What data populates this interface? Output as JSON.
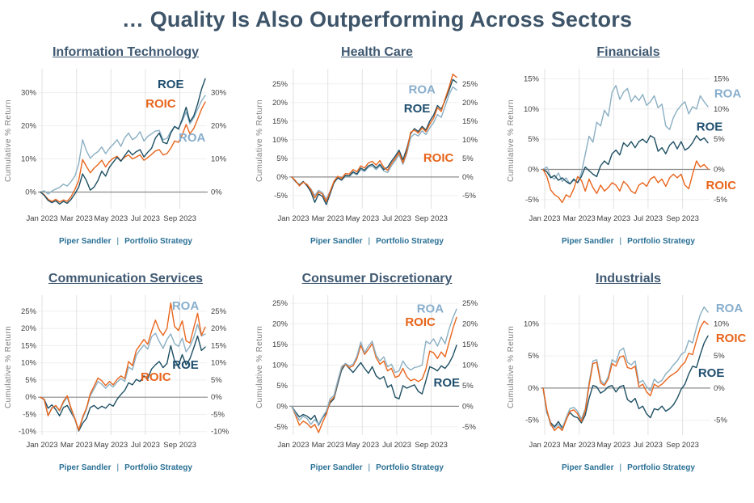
{
  "page_title": "… Quality Is Also Outperforming Across Sectors",
  "footer": {
    "brand": "Piper Sandler",
    "separator": "|",
    "team": "Portfolio Strategy"
  },
  "colors": {
    "roe": "#1d4f63",
    "roe_label": "#1f4e6e",
    "roic": "#e8651c",
    "roic_label": "#e8651c",
    "roa": "#8aafc3",
    "roa_label": "#88aecd",
    "title": "#3e5871",
    "grid_h": "#efefef",
    "grid_v": "#e2e2e2",
    "zero_line": "#8c8c8c",
    "tick_text": "#404040",
    "axis_label": "#7f7f7f",
    "footer_text": "#2a7095"
  },
  "axis": {
    "ylabel": "Cumulative % Return",
    "xticks": [
      "Jan 2023",
      "Mar 2023",
      "May 2023",
      "Jul 2023",
      "Sep 2023"
    ]
  },
  "chart_data": [
    {
      "type": "line",
      "title": "Information Technology",
      "ylim": [
        -5,
        36
      ],
      "yticks": [
        30,
        20,
        10,
        0
      ],
      "series": [
        {
          "name": "ROA",
          "color": "roa",
          "label": {
            "x": 0.92,
            "y": 16.5
          },
          "values": [
            0,
            0.4,
            -0.6,
            0.3,
            0.9,
            1.4,
            2.4,
            1.8,
            3.2,
            4.8,
            8.5,
            15.8,
            12.5,
            10.2,
            11.4,
            12.2,
            13.6,
            11.6,
            13.2,
            14.4,
            15.8,
            13.8,
            16.4,
            17.8,
            15.8,
            16.6,
            18.2,
            15.4,
            16.8,
            17.6,
            18.4,
            18.6,
            15.8,
            16.2,
            18.2,
            19.8,
            19.2,
            21.4,
            24.2,
            20.6,
            22.4,
            25,
            27.5,
            29.2
          ]
        },
        {
          "name": "ROIC",
          "color": "roic",
          "label": {
            "x": 0.73,
            "y": 26.7
          },
          "values": [
            0,
            -0.8,
            -2.2,
            -2.8,
            -2.2,
            -3,
            -2.4,
            -2.8,
            -1.4,
            0.8,
            3.5,
            9.8,
            7.8,
            5.8,
            7.2,
            8.3,
            9.6,
            7.6,
            9.2,
            10.2,
            10.8,
            9.4,
            10.6,
            11.2,
            10,
            10.6,
            11.2,
            9.6,
            10.4,
            11.4,
            12.4,
            12.8,
            11.2,
            11.6,
            13.2,
            15.4,
            15,
            17.2,
            20.4,
            17.6,
            19.2,
            22,
            25,
            27.2
          ]
        },
        {
          "name": "ROE",
          "color": "roe",
          "label": {
            "x": 0.79,
            "y": 32.6
          },
          "values": [
            0,
            -1,
            -2.5,
            -3.2,
            -2.6,
            -3.6,
            -2.8,
            -3.4,
            -2.2,
            -0.5,
            1.5,
            5.5,
            3.5,
            0.6,
            1.5,
            3.5,
            6.3,
            4.8,
            7.5,
            9,
            10.5,
            9.3,
            11,
            12.6,
            11.2,
            12.2,
            12.8,
            10.6,
            12,
            13.2,
            16.3,
            17.8,
            15,
            14.6,
            17.8,
            19.8,
            19,
            22,
            25.6,
            21.2,
            23,
            26.5,
            31,
            34.2
          ]
        }
      ]
    },
    {
      "type": "line",
      "title": "Health Care",
      "ylim": [
        -8.5,
        28
      ],
      "yticks": [
        25,
        20,
        15,
        10,
        5,
        0,
        -5
      ],
      "series": [
        {
          "name": "ROA",
          "color": "roa",
          "label": {
            "x": 0.79,
            "y": 23.6
          },
          "values": [
            0,
            -1.1,
            -2,
            -1.3,
            -2.2,
            -3.2,
            -5,
            -3.6,
            -4.2,
            -6,
            -3.8,
            -1.4,
            -0.3,
            -0.9,
            0.2,
            0.1,
            1.1,
            0.6,
            2,
            1.5,
            2.6,
            3,
            2,
            3,
            1.6,
            1.2,
            3,
            4.4,
            6,
            3.4,
            6.2,
            10.6,
            11.6,
            11,
            12.4,
            11.4,
            13.2,
            14.6,
            16.8,
            16,
            19,
            22,
            24.2,
            23.4
          ]
        },
        {
          "name": "ROE",
          "color": "roe",
          "label": {
            "x": 0.76,
            "y": 18.4
          },
          "values": [
            0,
            -1.2,
            -2.2,
            -1.2,
            -2.4,
            -4,
            -6.8,
            -4.6,
            -5.2,
            -7.4,
            -4.6,
            -1.6,
            -0.2,
            -0.8,
            0.4,
            0.3,
            1.4,
            0.8,
            2.4,
            1.8,
            3,
            3.4,
            2.4,
            3.4,
            2,
            2.6,
            4.2,
            5.6,
            7.2,
            4.6,
            7.6,
            11.6,
            13,
            12.2,
            13.6,
            12.6,
            15,
            16.6,
            19.2,
            18.2,
            20.6,
            23.2,
            26.2,
            25.4
          ]
        },
        {
          "name": "ROIC",
          "color": "roic",
          "label": {
            "x": 0.89,
            "y": 5.2
          },
          "values": [
            0,
            -1,
            -2.4,
            -1.4,
            -2,
            -3.4,
            -5.6,
            -4,
            -4.6,
            -6.6,
            -4,
            -1.2,
            0.2,
            -0.4,
            0.9,
            0.8,
            2,
            1.4,
            3,
            2.4,
            3.8,
            4.2,
            3.2,
            4.4,
            2.6,
            1.8,
            3.6,
            5,
            6.6,
            3.8,
            6.8,
            12,
            12.6,
            11.8,
            13.2,
            12.2,
            14.2,
            15.8,
            18.6,
            17.6,
            21,
            24,
            27.6,
            26.8
          ]
        }
      ]
    },
    {
      "type": "line",
      "title": "Financials",
      "ylim": [
        -6.5,
        16
      ],
      "yticks": [
        15,
        10,
        5,
        0,
        -5
      ],
      "series": [
        {
          "name": "ROA",
          "color": "roa",
          "label": {
            "x": 1.12,
            "y": 12.6
          },
          "values": [
            0,
            0.4,
            -1.2,
            -1.6,
            -0.6,
            -2,
            -1.4,
            -2.4,
            -1.8,
            -2.2,
            -0.6,
            2.5,
            5.5,
            4.5,
            7.8,
            7.2,
            9.8,
            8.8,
            12.8,
            13.9,
            11.6,
            12.8,
            13.4,
            11.2,
            12.2,
            11.4,
            12.4,
            10.6,
            11.2,
            12.2,
            10.2,
            10.8,
            7.2,
            6.6,
            8.6,
            9.8,
            10.6,
            11.2,
            9.2,
            10.4,
            10,
            12.2,
            11.2,
            10.4
          ]
        },
        {
          "name": "ROE",
          "color": "roe",
          "label": {
            "x": 1.01,
            "y": 7.1
          },
          "values": [
            0,
            -0.4,
            -1.4,
            -1,
            -1.8,
            -1.4,
            -2,
            -2.4,
            -1.6,
            -2.2,
            -1.2,
            0.4,
            -0.2,
            -0.8,
            -1.2,
            0.6,
            1.4,
            0.8,
            2.6,
            3.2,
            2.4,
            4.4,
            3.8,
            4.6,
            3.6,
            4.6,
            5,
            4.4,
            5.6,
            5.2,
            3,
            3.6,
            2.6,
            4,
            4.6,
            3.4,
            4.6,
            3.2,
            3.6,
            4.4,
            5.6,
            4.8,
            5.2,
            4.4
          ]
        },
        {
          "name": "ROIC",
          "color": "roic",
          "label": {
            "x": 1.08,
            "y": -2.6
          },
          "values": [
            0,
            -1.2,
            -3.4,
            -4.2,
            -4.6,
            -5.5,
            -4.2,
            -4.6,
            -3.2,
            -1.2,
            -1.8,
            -3.6,
            -1.6,
            -3,
            -4,
            -2.6,
            -3.6,
            -3,
            -2.2,
            -2.6,
            -3.6,
            -2,
            -2.6,
            -3.6,
            -4,
            -2.6,
            -2.2,
            -2.8,
            -1.6,
            -1.2,
            -2.2,
            -1.6,
            -2.8,
            -1.4,
            -0.8,
            -1.4,
            -0.8,
            -2.6,
            -3.2,
            -0.8,
            1.4,
            0.4,
            0.8,
            0.1
          ]
        }
      ]
    },
    {
      "type": "line",
      "title": "Communication Services",
      "ylim": [
        -11,
        28.5
      ],
      "yticks": [
        25,
        20,
        15,
        10,
        5,
        0,
        -5,
        -10
      ],
      "series": [
        {
          "name": "ROE",
          "color": "roe",
          "label": {
            "x": 0.88,
            "y": 9.4
          },
          "values": [
            0,
            -0.6,
            -3.2,
            -2.2,
            -3.6,
            -5.4,
            -3,
            -2.4,
            -4.4,
            -6.4,
            -9.8,
            -7.6,
            -6.2,
            -3,
            -2.4,
            -3.4,
            -2.6,
            -3.2,
            -2,
            -2.6,
            -0.6,
            0.8,
            2,
            4.2,
            3.6,
            5.2,
            4.6,
            6.2,
            5.4,
            8.2,
            9.4,
            10.4,
            8.6,
            9.8,
            15,
            10.6,
            9.2,
            12.4,
            9.4,
            11.2,
            14.4,
            17.8,
            13.6,
            14.6
          ]
        },
        {
          "name": "ROA",
          "color": "roa",
          "label": {
            "x": 0.88,
            "y": 26.6
          },
          "values": [
            0,
            -0.8,
            -5.2,
            -3,
            -2.6,
            -4,
            -1.6,
            0,
            -3.6,
            -6.6,
            -9.4,
            -6.2,
            -3.6,
            0.4,
            2.4,
            4.6,
            3.8,
            2.6,
            3.8,
            3,
            4.4,
            5.4,
            4.6,
            8.8,
            8,
            12.2,
            13.8,
            15.2,
            14,
            17.6,
            18.6,
            16.2,
            14.2,
            16.8,
            18.4,
            15.6,
            14.8,
            17.2,
            13.2,
            14.8,
            17.4,
            21.2,
            17.8,
            18.4
          ]
        },
        {
          "name": "ROIC",
          "color": "roic",
          "label": {
            "x": 0.7,
            "y": 5.9
          },
          "values": [
            0,
            -0.6,
            -5.4,
            -3.2,
            -2.4,
            -3.8,
            -1.2,
            0.4,
            -3.2,
            -6.2,
            -9.6,
            -5.8,
            -3.2,
            1,
            3.2,
            5.6,
            4.8,
            3.4,
            4.6,
            3.6,
            5.2,
            6.2,
            5.4,
            10.4,
            9.2,
            13.6,
            15.2,
            16.8,
            15.4,
            19.2,
            22.4,
            19.6,
            18,
            20,
            27.4,
            20.6,
            19.4,
            22.2,
            16.4,
            15.8,
            20.2,
            24.4,
            18,
            20.4
          ]
        }
      ]
    },
    {
      "type": "line",
      "title": "Consumer Discretionary",
      "ylim": [
        -7,
        26
      ],
      "yticks": [
        25,
        20,
        15,
        10,
        5,
        0,
        -5
      ],
      "series": [
        {
          "name": "ROE",
          "color": "roe",
          "label": {
            "x": 0.94,
            "y": 5.8
          },
          "values": [
            0,
            -1.4,
            -2.6,
            -2,
            -2.4,
            -3.2,
            -2.2,
            -4.6,
            -2.8,
            -1.6,
            0.8,
            1.8,
            5.4,
            8.8,
            10.2,
            9.2,
            8.2,
            9.4,
            10.6,
            9.2,
            8,
            9.6,
            7.4,
            6.6,
            7.2,
            4.6,
            5.2,
            2.2,
            1.8,
            5,
            4.4,
            4.8,
            5.2,
            3.6,
            3,
            6.2,
            9.6,
            9.2,
            8.6,
            9.8,
            9.2,
            10.4,
            12.2,
            14.8
          ]
        },
        {
          "name": "ROIC",
          "color": "roic",
          "label": {
            "x": 0.78,
            "y": 20.5
          },
          "values": [
            0,
            -2.2,
            -4.6,
            -3.6,
            -4.2,
            -5.2,
            -4.4,
            -6.4,
            -4,
            -2,
            1.2,
            2.2,
            6,
            9.4,
            10.2,
            9.4,
            9.8,
            11.6,
            14.8,
            12.6,
            13.8,
            15.2,
            11.8,
            10.2,
            11,
            8.6,
            9.2,
            7,
            7.4,
            9.2,
            7.2,
            6.2,
            6.6,
            6,
            6.6,
            9,
            13.4,
            13,
            11.6,
            13.2,
            12,
            15.4,
            18.8,
            21.6
          ]
        },
        {
          "name": "ROA",
          "color": "roa",
          "label": {
            "x": 0.84,
            "y": 23.7
          },
          "values": [
            0,
            -1.8,
            -3.4,
            -2.4,
            -3,
            -4.4,
            -3.2,
            -4.4,
            -2.6,
            -1.2,
            1.8,
            2.6,
            6.2,
            9.6,
            10.4,
            9.8,
            10.2,
            12.2,
            15.6,
            13,
            14.6,
            15.8,
            12.4,
            11,
            12,
            9.6,
            10.2,
            8.2,
            8.6,
            11,
            9.6,
            8.8,
            9.4,
            9.6,
            10,
            15.8,
            15.2,
            16.4,
            14.6,
            16.8,
            15.2,
            18.6,
            21.4,
            23.6
          ]
        }
      ]
    },
    {
      "type": "line",
      "title": "Industrials",
      "ylim": [
        -7.3,
        13.8
      ],
      "yticks": [
        10,
        5,
        0,
        -5
      ],
      "series": [
        {
          "name": "ROE",
          "color": "roe",
          "label": {
            "x": 1.02,
            "y": 2.4
          },
          "values": [
            0,
            -3.8,
            -5.4,
            -6,
            -5.2,
            -6.2,
            -4.8,
            -3.8,
            -4.4,
            -4.6,
            -5.4,
            -4.2,
            -1.6,
            0.4,
            0.2,
            -0.8,
            -0.4,
            0.2,
            0.4,
            -0.6,
            0.2,
            0.4,
            -1.8,
            -2.2,
            -1.6,
            -3.2,
            -2.8,
            -4,
            -4.6,
            -3.2,
            -3.4,
            -2.8,
            -3.6,
            -3.2,
            -2.6,
            -1.6,
            -0.2,
            0.6,
            2.2,
            3.4,
            3.2,
            5.2,
            7,
            8.1
          ]
        },
        {
          "name": "ROA",
          "color": "roa",
          "label": {
            "x": 1.13,
            "y": 12.4
          },
          "values": [
            0,
            -3.6,
            -5.8,
            -6.2,
            -5.6,
            -6.4,
            -4.6,
            -3.2,
            -3,
            -3.6,
            -4.8,
            -3.2,
            0.8,
            4.2,
            4.4,
            1.2,
            0.6,
            1.8,
            4.4,
            4,
            5.8,
            6.2,
            4,
            3.6,
            4.2,
            0.8,
            1.2,
            0.2,
            -0.4,
            1.4,
            0.8,
            1.2,
            2.2,
            2.8,
            3.6,
            4.2,
            5.2,
            5.6,
            7.4,
            7,
            9.4,
            11.4,
            12.6,
            11.8
          ]
        },
        {
          "name": "ROIC",
          "color": "roic",
          "label": {
            "x": 1.14,
            "y": 7.8
          },
          "values": [
            0,
            -3.4,
            -5.6,
            -6.6,
            -6,
            -6.6,
            -5,
            -3.6,
            -3.4,
            -4,
            -5.2,
            -3.6,
            0.4,
            3.8,
            4,
            0.8,
            0.4,
            1.4,
            3.8,
            3.4,
            4.8,
            5,
            3.2,
            3,
            3.4,
            0.2,
            0.6,
            -0.6,
            -1.2,
            0.6,
            0.2,
            0.6,
            1.2,
            1.8,
            2.2,
            2.6,
            3.4,
            4,
            5.4,
            5.2,
            7.4,
            9.4,
            10.4,
            9.9
          ]
        }
      ]
    }
  ]
}
